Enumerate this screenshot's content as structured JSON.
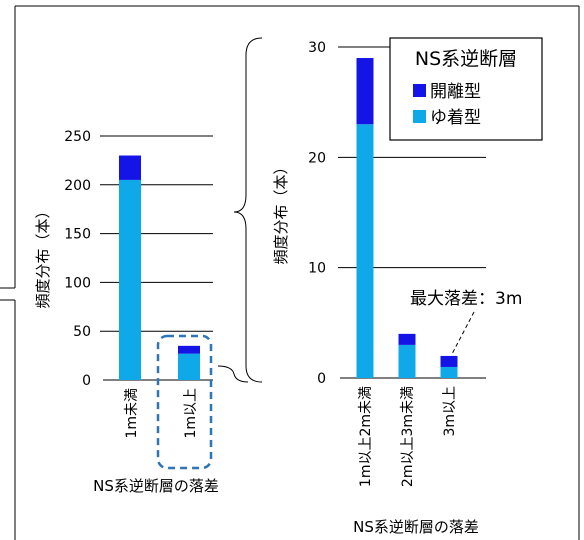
{
  "colors": {
    "detached": "#1414e6",
    "adhesive": "#0fa8e8",
    "grid": "#000000",
    "highlight": "#2e75b6"
  },
  "chart_data": [
    {
      "type": "bar",
      "stacked": true,
      "categories": [
        "1m未満",
        "1m以上"
      ],
      "series": [
        {
          "name": "ゆ着型",
          "values": [
            205,
            27
          ]
        },
        {
          "name": "開離型",
          "values": [
            25,
            8
          ]
        }
      ],
      "xlabel": "NS系逆断層の落差",
      "ylabel": "頻度分布（本）",
      "ylim": [
        0,
        250
      ],
      "yticks": [
        "0",
        "50",
        "100",
        "150",
        "200",
        "250"
      ],
      "grid": true
    },
    {
      "type": "bar",
      "stacked": true,
      "categories": [
        "1m以上2m未満",
        "2m以上3m未満",
        "3m以上"
      ],
      "series": [
        {
          "name": "ゆ着型",
          "values": [
            23,
            3,
            1
          ]
        },
        {
          "name": "開離型",
          "values": [
            6,
            1,
            1
          ]
        }
      ],
      "xlabel": "NS系逆断層の落差",
      "ylabel": "頻度分布（本）",
      "ylim": [
        0,
        30
      ],
      "yticks": [
        "0",
        "10",
        "20",
        "30"
      ],
      "grid": true,
      "legend": {
        "title": "NS系逆断層",
        "placement": "top-right",
        "items": [
          "開離型",
          "ゆ着型"
        ]
      },
      "annotation": "最大落差：3m"
    }
  ]
}
